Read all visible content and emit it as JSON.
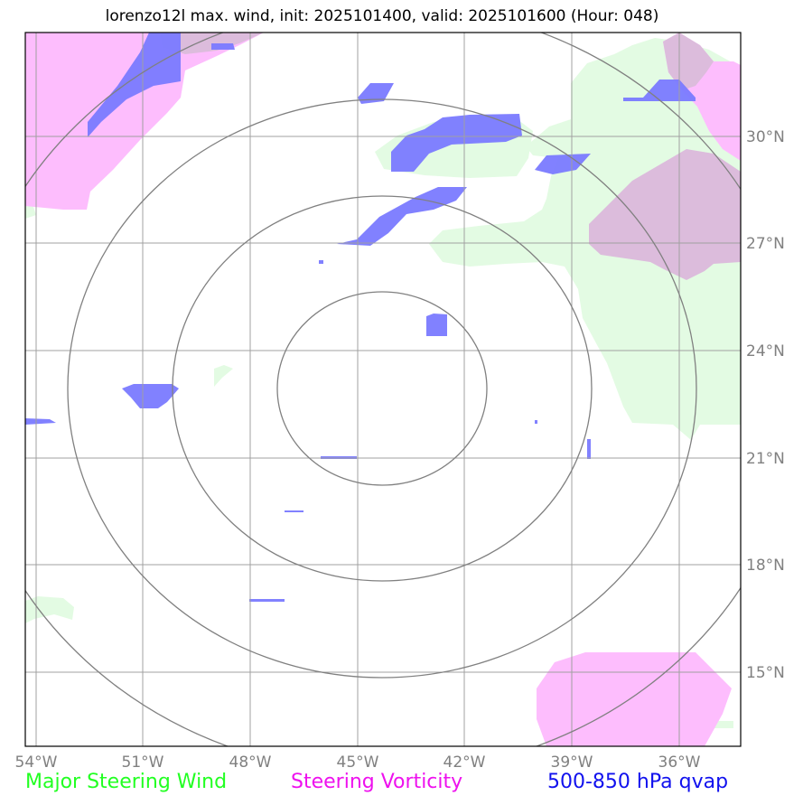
{
  "title": "lorenzo12l max. wind, init: 2025101400, valid: 2025101600 (Hour: 048)",
  "colors": {
    "wind": "#e3fbe3",
    "vorticity": "#fdbdfd",
    "vorticity_over_wind": "#dcbcdc",
    "qvap": "#7a7aff",
    "qvap_dark": "#5a6ee6",
    "grid": "#a0a0a0",
    "range_rings": "#808080",
    "tick_text": "#808080"
  },
  "axes": {
    "lon_ticks": [
      "54°W",
      "51°W",
      "48°W",
      "45°W",
      "42°W",
      "39°W",
      "36°W"
    ],
    "lat_ticks": [
      "30°N",
      "27°N",
      "24°N",
      "21°N",
      "18°N",
      "15°N"
    ]
  },
  "legend": {
    "wind": {
      "label": "Major Steering Wind",
      "color": "#22ff22"
    },
    "vorticity": {
      "label": "Steering Vorticity",
      "color": "#ee11ee"
    },
    "qvap": {
      "label": "500-850 hPa qvap",
      "color": "#1111ee"
    }
  },
  "range_rings": {
    "center": [
      "44.3°W",
      "22.9°N"
    ],
    "count": 4
  }
}
